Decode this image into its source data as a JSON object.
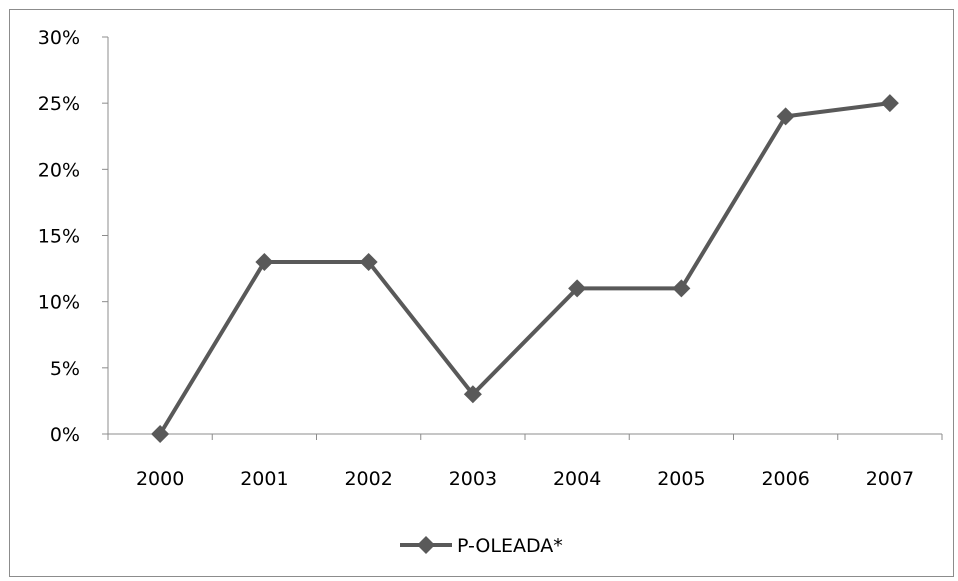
{
  "chart_data": {
    "type": "line",
    "categories": [
      "2000",
      "2001",
      "2002",
      "2003",
      "2004",
      "2005",
      "2006",
      "2007"
    ],
    "series": [
      {
        "name": "P-OLEADA*",
        "values": [
          0,
          0.13,
          0.13,
          0.03,
          0.11,
          0.11,
          0.24,
          0.25
        ],
        "color": "#595959"
      }
    ],
    "y_ticks": [
      "0%",
      "5%",
      "10%",
      "15%",
      "20%",
      "25%",
      "30%"
    ],
    "ylim": [
      0,
      0.3
    ],
    "y_format": "percent",
    "grid": false,
    "legend_position": "bottom",
    "title": "",
    "xlabel": "",
    "ylabel": ""
  }
}
